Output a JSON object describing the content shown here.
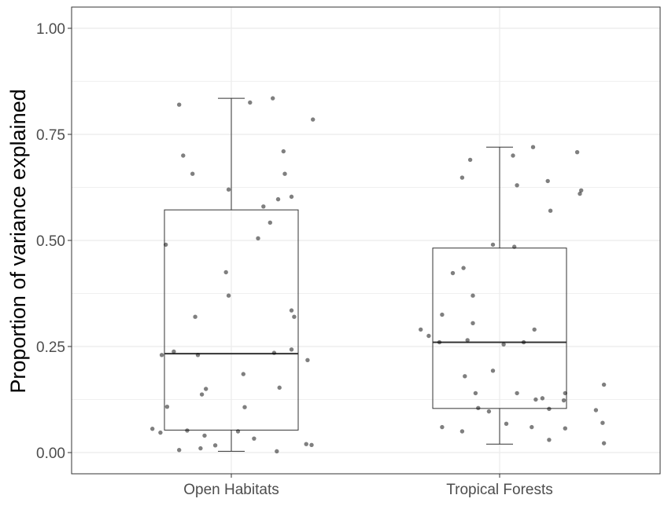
{
  "chart_data": {
    "type": "boxplot",
    "xlabel": "",
    "ylabel": "Proportion of variance explained",
    "ylim": [
      -0.05,
      1.05
    ],
    "y_ticks": [
      0.0,
      0.25,
      0.5,
      0.75,
      1.0
    ],
    "y_tick_labels": [
      "0.00",
      "0.25",
      "0.50",
      "0.75",
      "1.00"
    ],
    "grid": true,
    "categories": [
      "Open Habitats",
      "Tropical Forests"
    ],
    "boxes": [
      {
        "category": "Open Habitats",
        "min": 0.003,
        "q1": 0.053,
        "median": 0.233,
        "q3": 0.572,
        "max": 0.835
      },
      {
        "category": "Tropical Forests",
        "min": 0.02,
        "q1": 0.104,
        "median": 0.26,
        "q3": 0.482,
        "max": 0.72
      }
    ],
    "points": [
      {
        "category": "Open Habitats",
        "jitter": -0.59,
        "y": 0.056
      },
      {
        "category": "Open Habitats",
        "jitter": -0.53,
        "y": 0.047
      },
      {
        "category": "Open Habitats",
        "jitter": -0.52,
        "y": 0.23
      },
      {
        "category": "Open Habitats",
        "jitter": -0.49,
        "y": 0.49
      },
      {
        "category": "Open Habitats",
        "jitter": -0.48,
        "y": 0.108
      },
      {
        "category": "Open Habitats",
        "jitter": -0.43,
        "y": 0.238
      },
      {
        "category": "Open Habitats",
        "jitter": -0.39,
        "y": 0.82
      },
      {
        "category": "Open Habitats",
        "jitter": -0.39,
        "y": 0.006
      },
      {
        "category": "Open Habitats",
        "jitter": -0.36,
        "y": 0.7
      },
      {
        "category": "Open Habitats",
        "jitter": -0.33,
        "y": 0.052
      },
      {
        "category": "Open Habitats",
        "jitter": -0.29,
        "y": 0.657
      },
      {
        "category": "Open Habitats",
        "jitter": -0.27,
        "y": 0.32
      },
      {
        "category": "Open Habitats",
        "jitter": -0.25,
        "y": 0.23
      },
      {
        "category": "Open Habitats",
        "jitter": -0.23,
        "y": 0.01
      },
      {
        "category": "Open Habitats",
        "jitter": -0.2,
        "y": 0.04
      },
      {
        "category": "Open Habitats",
        "jitter": -0.19,
        "y": 0.15
      },
      {
        "category": "Open Habitats",
        "jitter": -0.22,
        "y": 0.137
      },
      {
        "category": "Open Habitats",
        "jitter": -0.12,
        "y": 0.017
      },
      {
        "category": "Open Habitats",
        "jitter": -0.04,
        "y": 0.425
      },
      {
        "category": "Open Habitats",
        "jitter": -0.02,
        "y": 0.62
      },
      {
        "category": "Open Habitats",
        "jitter": -0.02,
        "y": 0.37
      },
      {
        "category": "Open Habitats",
        "jitter": 0.05,
        "y": 0.05
      },
      {
        "category": "Open Habitats",
        "jitter": 0.09,
        "y": 0.185
      },
      {
        "category": "Open Habitats",
        "jitter": 0.1,
        "y": 0.107
      },
      {
        "category": "Open Habitats",
        "jitter": 0.14,
        "y": 0.825
      },
      {
        "category": "Open Habitats",
        "jitter": 0.17,
        "y": 0.033
      },
      {
        "category": "Open Habitats",
        "jitter": 0.2,
        "y": 0.505
      },
      {
        "category": "Open Habitats",
        "jitter": 0.24,
        "y": 0.58
      },
      {
        "category": "Open Habitats",
        "jitter": 0.29,
        "y": 0.542
      },
      {
        "category": "Open Habitats",
        "jitter": 0.31,
        "y": 0.835
      },
      {
        "category": "Open Habitats",
        "jitter": 0.32,
        "y": 0.235
      },
      {
        "category": "Open Habitats",
        "jitter": 0.34,
        "y": 0.003
      },
      {
        "category": "Open Habitats",
        "jitter": 0.35,
        "y": 0.597
      },
      {
        "category": "Open Habitats",
        "jitter": 0.36,
        "y": 0.153
      },
      {
        "category": "Open Habitats",
        "jitter": 0.39,
        "y": 0.71
      },
      {
        "category": "Open Habitats",
        "jitter": 0.4,
        "y": 0.657
      },
      {
        "category": "Open Habitats",
        "jitter": 0.45,
        "y": 0.603
      },
      {
        "category": "Open Habitats",
        "jitter": 0.45,
        "y": 0.243
      },
      {
        "category": "Open Habitats",
        "jitter": 0.45,
        "y": 0.335
      },
      {
        "category": "Open Habitats",
        "jitter": 0.47,
        "y": 0.32
      },
      {
        "category": "Open Habitats",
        "jitter": 0.57,
        "y": 0.218
      },
      {
        "category": "Open Habitats",
        "jitter": 0.56,
        "y": 0.02
      },
      {
        "category": "Open Habitats",
        "jitter": 0.6,
        "y": 0.018
      },
      {
        "category": "Open Habitats",
        "jitter": 0.61,
        "y": 0.785
      },
      {
        "category": "Tropical Forests",
        "jitter": -0.59,
        "y": 0.29
      },
      {
        "category": "Tropical Forests",
        "jitter": -0.53,
        "y": 0.275
      },
      {
        "category": "Tropical Forests",
        "jitter": -0.45,
        "y": 0.26
      },
      {
        "category": "Tropical Forests",
        "jitter": -0.43,
        "y": 0.06
      },
      {
        "category": "Tropical Forests",
        "jitter": -0.43,
        "y": 0.325
      },
      {
        "category": "Tropical Forests",
        "jitter": -0.35,
        "y": 0.423
      },
      {
        "category": "Tropical Forests",
        "jitter": -0.28,
        "y": 0.648
      },
      {
        "category": "Tropical Forests",
        "jitter": -0.27,
        "y": 0.435
      },
      {
        "category": "Tropical Forests",
        "jitter": -0.28,
        "y": 0.05
      },
      {
        "category": "Tropical Forests",
        "jitter": -0.26,
        "y": 0.18
      },
      {
        "category": "Tropical Forests",
        "jitter": -0.24,
        "y": 0.265
      },
      {
        "category": "Tropical Forests",
        "jitter": -0.22,
        "y": 0.69
      },
      {
        "category": "Tropical Forests",
        "jitter": -0.2,
        "y": 0.37
      },
      {
        "category": "Tropical Forests",
        "jitter": -0.2,
        "y": 0.305
      },
      {
        "category": "Tropical Forests",
        "jitter": -0.18,
        "y": 0.14
      },
      {
        "category": "Tropical Forests",
        "jitter": -0.16,
        "y": 0.105
      },
      {
        "category": "Tropical Forests",
        "jitter": -0.08,
        "y": 0.097
      },
      {
        "category": "Tropical Forests",
        "jitter": -0.05,
        "y": 0.49
      },
      {
        "category": "Tropical Forests",
        "jitter": -0.05,
        "y": 0.193
      },
      {
        "category": "Tropical Forests",
        "jitter": 0.03,
        "y": 0.255
      },
      {
        "category": "Tropical Forests",
        "jitter": 0.05,
        "y": 0.068
      },
      {
        "category": "Tropical Forests",
        "jitter": 0.1,
        "y": 0.7
      },
      {
        "category": "Tropical Forests",
        "jitter": 0.11,
        "y": 0.485
      },
      {
        "category": "Tropical Forests",
        "jitter": 0.13,
        "y": 0.63
      },
      {
        "category": "Tropical Forests",
        "jitter": 0.13,
        "y": 0.14
      },
      {
        "category": "Tropical Forests",
        "jitter": 0.18,
        "y": 0.26
      },
      {
        "category": "Tropical Forests",
        "jitter": 0.24,
        "y": 0.06
      },
      {
        "category": "Tropical Forests",
        "jitter": 0.25,
        "y": 0.72
      },
      {
        "category": "Tropical Forests",
        "jitter": 0.26,
        "y": 0.29
      },
      {
        "category": "Tropical Forests",
        "jitter": 0.27,
        "y": 0.125
      },
      {
        "category": "Tropical Forests",
        "jitter": 0.32,
        "y": 0.128
      },
      {
        "category": "Tropical Forests",
        "jitter": 0.36,
        "y": 0.64
      },
      {
        "category": "Tropical Forests",
        "jitter": 0.37,
        "y": 0.103
      },
      {
        "category": "Tropical Forests",
        "jitter": 0.38,
        "y": 0.57
      },
      {
        "category": "Tropical Forests",
        "jitter": 0.37,
        "y": 0.03
      },
      {
        "category": "Tropical Forests",
        "jitter": 0.48,
        "y": 0.123
      },
      {
        "category": "Tropical Forests",
        "jitter": 0.49,
        "y": 0.14
      },
      {
        "category": "Tropical Forests",
        "jitter": 0.49,
        "y": 0.057
      },
      {
        "category": "Tropical Forests",
        "jitter": 0.58,
        "y": 0.708
      },
      {
        "category": "Tropical Forests",
        "jitter": 0.6,
        "y": 0.61
      },
      {
        "category": "Tropical Forests",
        "jitter": 0.61,
        "y": 0.618
      },
      {
        "category": "Tropical Forests",
        "jitter": 0.72,
        "y": 0.1
      },
      {
        "category": "Tropical Forests",
        "jitter": 0.77,
        "y": 0.07
      },
      {
        "category": "Tropical Forests",
        "jitter": 0.78,
        "y": 0.16
      },
      {
        "category": "Tropical Forests",
        "jitter": 0.78,
        "y": 0.022
      }
    ],
    "colors": {
      "panel_border": "#333333",
      "gridline": "#ebebeb",
      "box_line": "#333333",
      "point": "#000000",
      "tick_label": "#4d4d4d"
    }
  }
}
